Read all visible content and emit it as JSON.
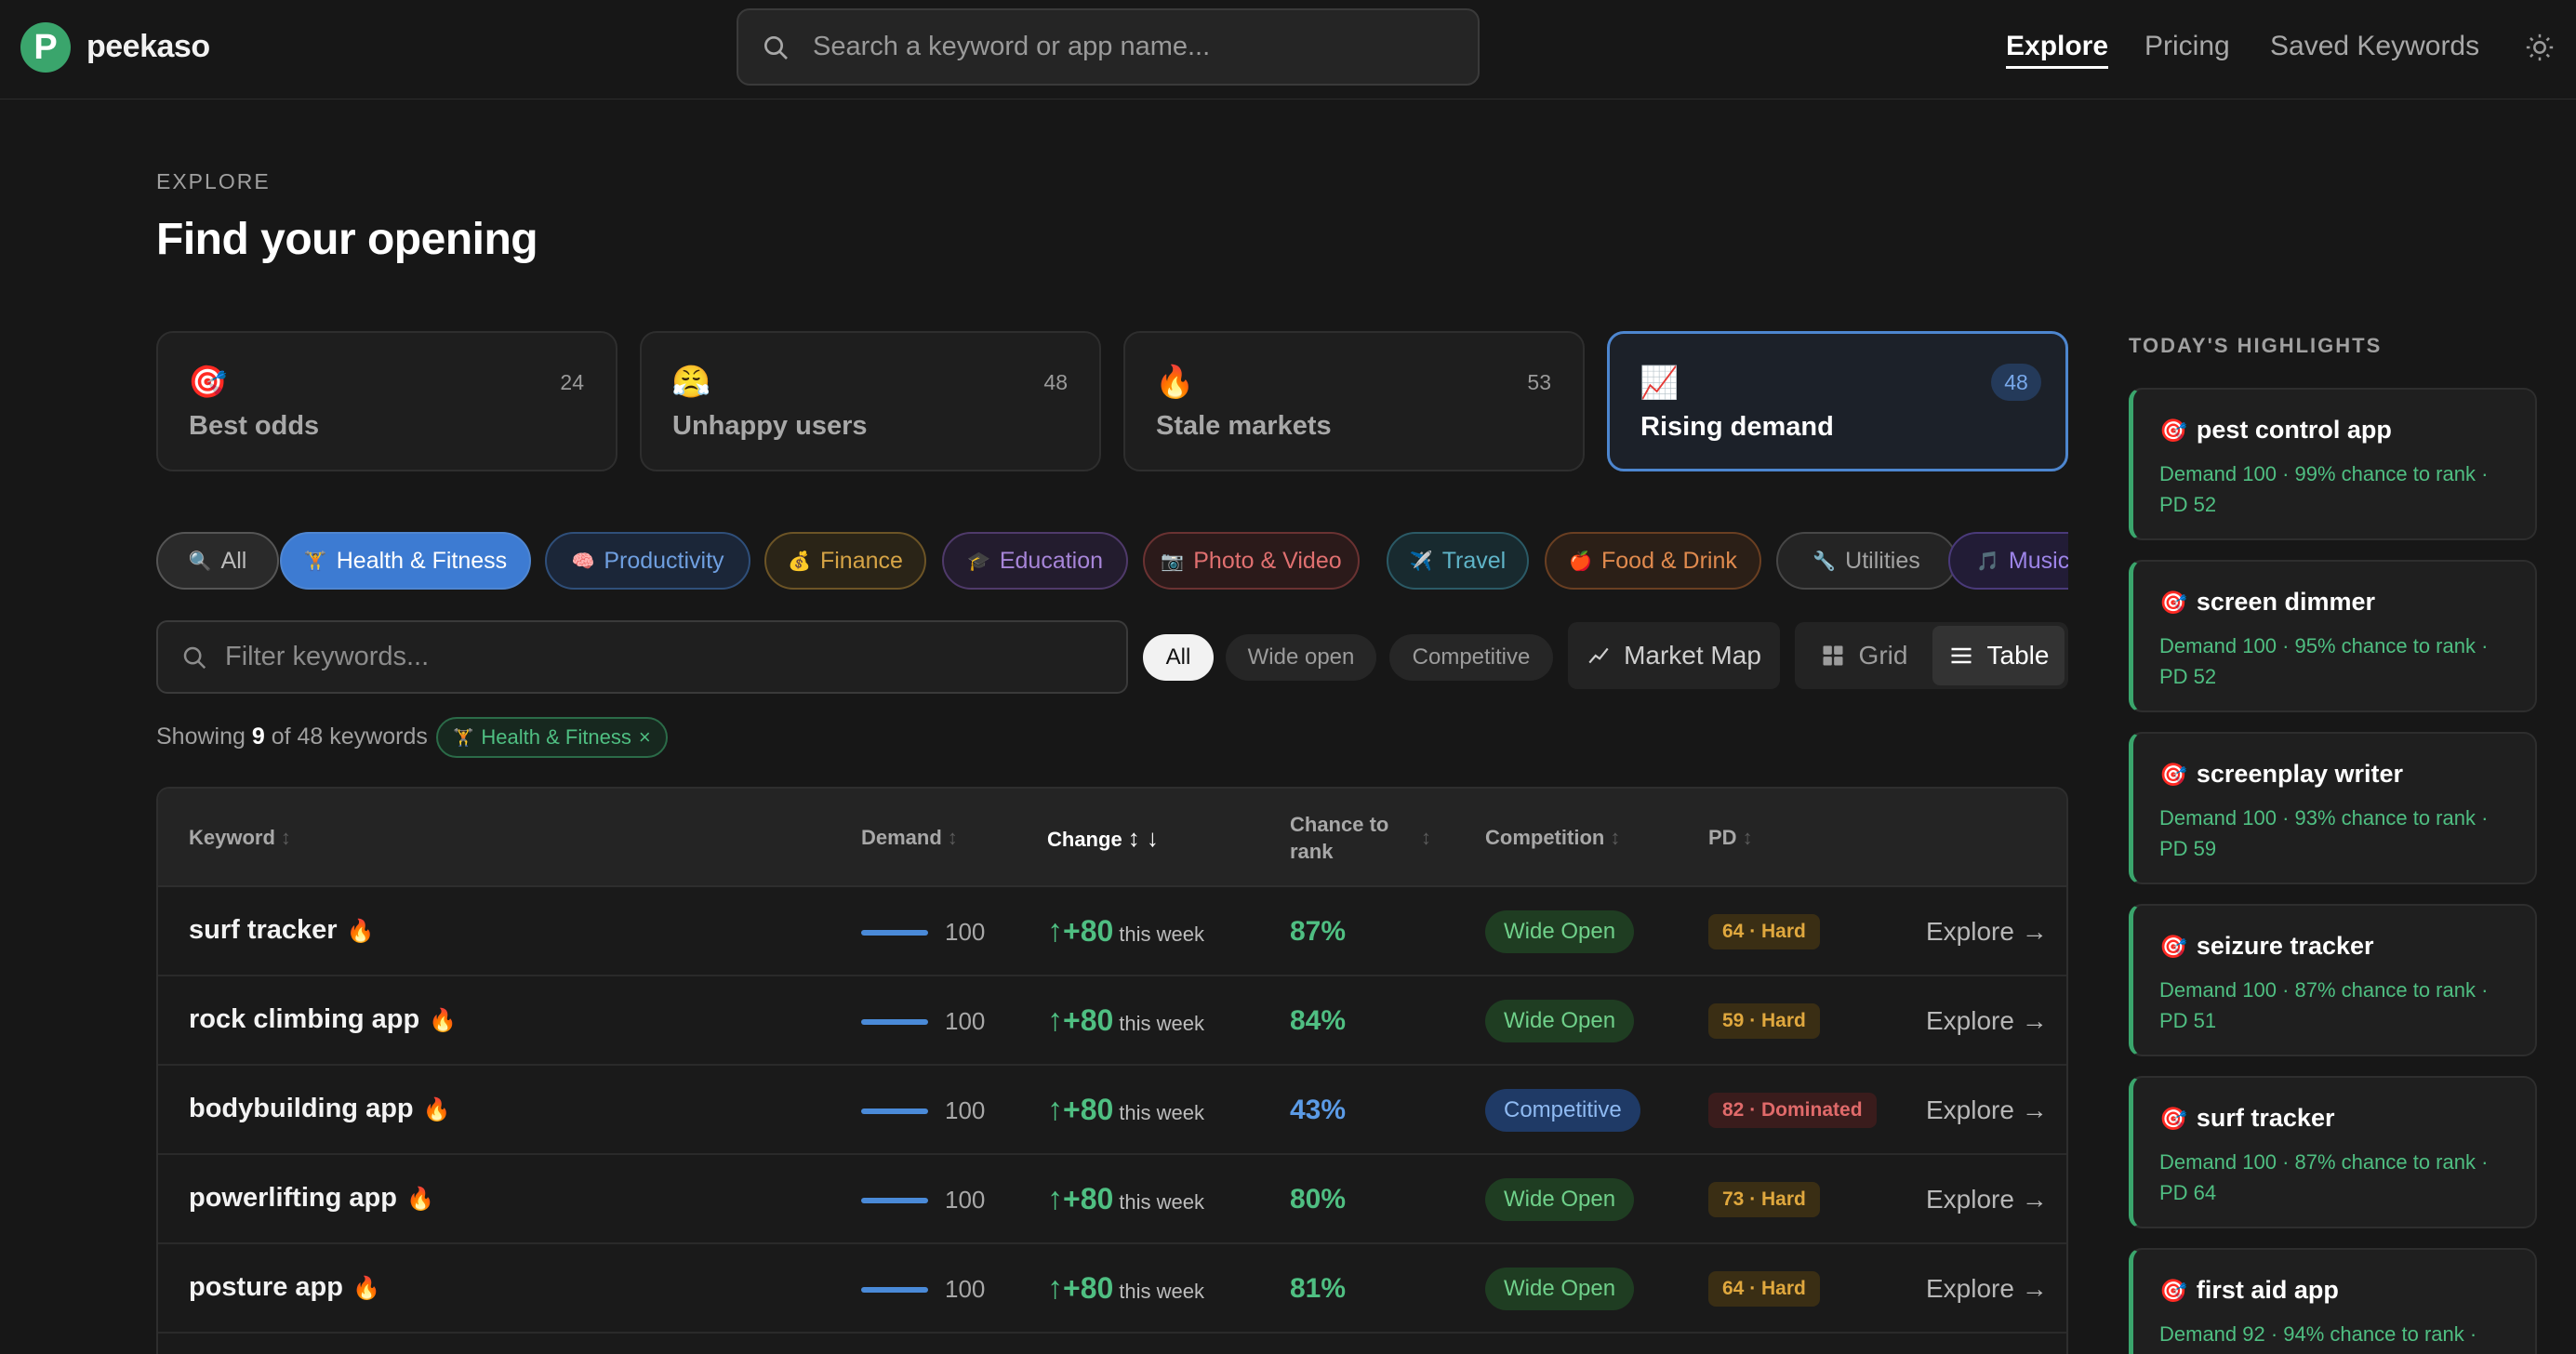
{
  "brand": {
    "name": "peekaso",
    "logo_letter": "P"
  },
  "search": {
    "placeholder": "Search a keyword or app name..."
  },
  "nav": {
    "explore": "Explore",
    "pricing": "Pricing",
    "saved": "Saved Keywords"
  },
  "header": {
    "eyebrow": "EXPLORE",
    "title": "Find your opening"
  },
  "lenses": [
    {
      "emoji": "🎯",
      "name": "Best odds",
      "count": "24"
    },
    {
      "emoji": "😤",
      "name": "Unhappy users",
      "count": "48"
    },
    {
      "emoji": "🔥",
      "name": "Stale markets",
      "count": "53"
    },
    {
      "emoji": "📈",
      "name": "Rising demand",
      "count": "48",
      "active": true
    }
  ],
  "categories": [
    {
      "emoji": "🔍",
      "label": "All"
    },
    {
      "emoji": "🏋",
      "label": "Health & Fitness",
      "active": true
    },
    {
      "emoji": "🧠",
      "label": "Productivity"
    },
    {
      "emoji": "💰",
      "label": "Finance"
    },
    {
      "emoji": "🎓",
      "label": "Education"
    },
    {
      "emoji": "📷",
      "label": "Photo & Video"
    },
    {
      "emoji": "✈️",
      "label": "Travel"
    },
    {
      "emoji": "🍎",
      "label": "Food & Drink"
    },
    {
      "emoji": "🔧",
      "label": "Utilities"
    },
    {
      "emoji": "🎵",
      "label": "Music"
    }
  ],
  "filter": {
    "placeholder": "Filter keywords..."
  },
  "segments": {
    "all": "All",
    "wide_open": "Wide open",
    "competitive": "Competitive"
  },
  "tools": {
    "market_map": "Market Map",
    "grid": "Grid",
    "table": "Table"
  },
  "showing": {
    "prefix": "Showing",
    "count": "9",
    "middle": "of 48 keywords",
    "tag": "Health & Fitness",
    "tag_emoji": "🏋",
    "tag_close": "×"
  },
  "table": {
    "headers": {
      "keyword": "Keyword",
      "demand": "Demand",
      "change": "Change",
      "chance": "Chance to rank",
      "competition": "Competition",
      "pd": "PD"
    },
    "explore_label": "Explore →",
    "this_week": "this week",
    "rows": [
      {
        "keyword": "surf tracker",
        "demand": "100",
        "change": "+80",
        "chance": "87%",
        "competition": "Wide Open",
        "pd": "64 · Hard"
      },
      {
        "keyword": "rock climbing app",
        "demand": "100",
        "change": "+80",
        "chance": "84%",
        "competition": "Wide Open",
        "pd": "59 · Hard"
      },
      {
        "keyword": "bodybuilding app",
        "demand": "100",
        "change": "+80",
        "chance": "43%",
        "competition": "Competitive",
        "pd": "82 · Dominated"
      },
      {
        "keyword": "powerlifting app",
        "demand": "100",
        "change": "+80",
        "chance": "80%",
        "competition": "Wide Open",
        "pd": "73 · Hard"
      },
      {
        "keyword": "posture app",
        "demand": "100",
        "change": "+80",
        "chance": "81%",
        "competition": "Wide Open",
        "pd": "64 · Hard"
      }
    ]
  },
  "highlights": {
    "title": "TODAY'S HIGHLIGHTS",
    "items": [
      {
        "name": "pest control app",
        "detail": "Demand 100 · 99% chance to rank · PD 52"
      },
      {
        "name": "screen dimmer",
        "detail": "Demand 100 · 95% chance to rank · PD 52"
      },
      {
        "name": "screenplay writer",
        "detail": "Demand 100 · 93% chance to rank · PD 59"
      },
      {
        "name": "seizure tracker",
        "detail": "Demand 100 · 87% chance to rank · PD 51"
      },
      {
        "name": "surf tracker",
        "detail": "Demand 100 · 87% chance to rank · PD 64"
      },
      {
        "name": "first aid app",
        "detail": "Demand 92 · 94% chance to rank ·"
      }
    ]
  },
  "colors": {
    "accent_green": "#3aa56c",
    "accent_blue": "#4d86cf",
    "background": "#171717"
  }
}
